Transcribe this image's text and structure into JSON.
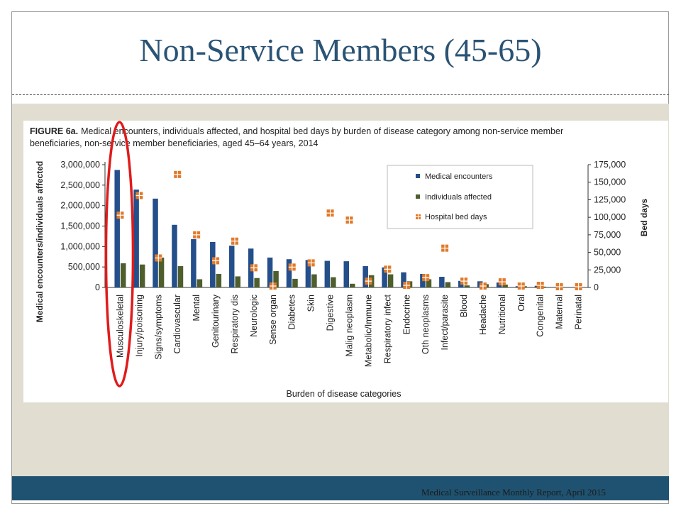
{
  "slide": {
    "title": "Non-Service Members (45-65)",
    "footer": "Medical Surveillance Monthly Report, April 2015"
  },
  "figure": {
    "caption_label": "FIGURE 6a.",
    "caption_line1": "Medical encounters, individuals affected, and hospital bed days by burden of disease category among non-service member",
    "caption_line2": "beneficiaries, non-service member beneficiaries, aged 45–64 years, 2014"
  },
  "colors": {
    "encounters": "#244f8a",
    "individuals": "#4e5e2c",
    "bed_days": "#e07a2a",
    "highlight": "#e01b1b"
  },
  "chart_data": {
    "type": "bar",
    "xlabel": "Burden of disease categories",
    "ylabel": "Medical encounters/individuals affected",
    "y2label": "Bed days",
    "ylim": [
      0,
      3000000
    ],
    "y2lim": [
      0,
      175000
    ],
    "yticks": [
      "3,000,000",
      "2,500,000",
      "2,000,000",
      "1,500,000",
      "1,000,000",
      "500,000",
      "0"
    ],
    "y2ticks": [
      "175,000",
      "150,000",
      "125,000",
      "100,000",
      "75,000",
      "50,000",
      "25,000",
      "0"
    ],
    "legend_position": "top-right",
    "categories": [
      "Musculoskeletal",
      "Injury/poisoning",
      "Signs/symptoms",
      "Cardiovascular",
      "Mental",
      "Genitourinary",
      "Respiratory dis",
      "Neurologic",
      "Sense organ",
      "Diabetes",
      "Skin",
      "Digestive",
      "Malig neoplasm",
      "Metabolic/Immune",
      "Respiratory infect",
      "Endocrine",
      "Oth neoplasms",
      "Infect/parasite",
      "Blood",
      "Headache",
      "Nutritional",
      "Oral",
      "Congenital",
      "Maternal",
      "Perinatal"
    ],
    "series": [
      {
        "name": "Medical encounters",
        "axis": "left",
        "mark": "bar",
        "values": [
          2870000,
          2390000,
          2170000,
          1530000,
          1180000,
          1110000,
          1020000,
          950000,
          730000,
          690000,
          670000,
          650000,
          640000,
          520000,
          490000,
          370000,
          330000,
          260000,
          160000,
          150000,
          120000,
          30000,
          40000,
          10000,
          10000
        ]
      },
      {
        "name": "Individuals affected",
        "axis": "left",
        "mark": "bar",
        "values": [
          590000,
          560000,
          730000,
          520000,
          200000,
          330000,
          270000,
          230000,
          400000,
          210000,
          320000,
          250000,
          90000,
          300000,
          320000,
          150000,
          200000,
          130000,
          50000,
          80000,
          70000,
          30000,
          20000,
          10000,
          5000
        ]
      },
      {
        "name": "Hospital bed days",
        "axis": "right",
        "mark": "point",
        "values": [
          103000,
          131000,
          42000,
          161000,
          75000,
          38000,
          66000,
          28000,
          2000,
          29000,
          35000,
          106000,
          96000,
          9000,
          26000,
          3000,
          14000,
          56000,
          9000,
          2000,
          8000,
          2000,
          3000,
          1000,
          1000
        ]
      }
    ],
    "highlight_category": "Musculoskeletal"
  }
}
